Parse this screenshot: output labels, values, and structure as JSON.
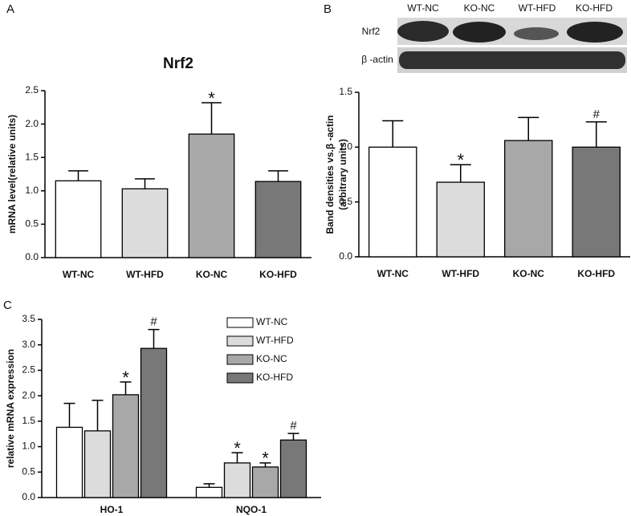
{
  "panel_labels": [
    "A",
    "B",
    "C"
  ],
  "blot": {
    "lanes": [
      "WT-NC",
      "KO-NC",
      "WT-HFD",
      "KO-HFD"
    ],
    "rows": [
      "Nrf2",
      "β -actin"
    ]
  },
  "chart_data": [
    {
      "type": "bar",
      "title": "Nrf2",
      "ylabel": "mRNA level(relative units)",
      "categories": [
        "WT-NC",
        "WT-HFD",
        "KO-NC",
        "KO-HFD"
      ],
      "values": [
        1.15,
        1.03,
        1.85,
        1.14
      ],
      "errors": [
        0.15,
        0.15,
        0.47,
        0.16
      ],
      "markers": [
        null,
        null,
        "*",
        null
      ],
      "colors": [
        "#ffffff",
        "#dcdcdc",
        "#a8a8a8",
        "#787878"
      ],
      "ylim": [
        0,
        2.5
      ],
      "yticks": [
        {
          "value": 0,
          "label": "0.0"
        },
        0.5,
        {
          "value": 1,
          "label": "1.0"
        },
        1.5,
        {
          "value": 2,
          "label": "2.0"
        },
        2.5
      ]
    },
    {
      "type": "bar",
      "ylabel": [
        "Band densities vs.β -actin",
        "(arbitrary units)"
      ],
      "categories": [
        "WT-NC",
        "WT-HFD",
        "KO-NC",
        "KO-HFD"
      ],
      "values": [
        1.0,
        0.68,
        1.06,
        1.0
      ],
      "errors": [
        0.24,
        0.16,
        0.21,
        0.23
      ],
      "markers": [
        null,
        "*",
        null,
        "#"
      ],
      "colors": [
        "#ffffff",
        "#dcdcdc",
        "#a8a8a8",
        "#787878"
      ],
      "ylim": [
        0,
        1.5
      ],
      "yticks": [
        {
          "value": 0,
          "label": "0.0"
        },
        0.5,
        {
          "value": 1,
          "label": "1.0"
        },
        1.5
      ]
    },
    {
      "type": "bar",
      "ylabel": "relative mRNA expression",
      "categories": [
        "HO-1",
        "NQO-1"
      ],
      "series": [
        {
          "name": "WT-NC",
          "color": "#ffffff",
          "values": [
            1.38,
            0.2
          ],
          "errors": [
            0.47,
            0.07
          ],
          "markers": [
            null,
            null
          ]
        },
        {
          "name": "WT-HFD",
          "color": "#dcdcdc",
          "values": [
            1.31,
            0.68
          ],
          "errors": [
            0.6,
            0.2
          ],
          "markers": [
            null,
            "*"
          ]
        },
        {
          "name": "KO-NC",
          "color": "#a8a8a8",
          "values": [
            2.02,
            0.6
          ],
          "errors": [
            0.25,
            0.08
          ],
          "markers": [
            "*",
            "*"
          ]
        },
        {
          "name": "KO-HFD",
          "color": "#787878",
          "values": [
            2.93,
            1.13
          ],
          "errors": [
            0.37,
            0.13
          ],
          "markers": [
            "#",
            "#"
          ]
        }
      ],
      "legend": "upper right",
      "ylim": [
        0,
        3.5
      ],
      "yticks": [
        {
          "value": 0,
          "label": "0.0"
        },
        0.5,
        {
          "value": 1,
          "label": "1.0"
        },
        1.5,
        {
          "value": 2,
          "label": "2.0"
        },
        2.5,
        {
          "value": 3,
          "label": "3.0"
        },
        3.5
      ]
    }
  ]
}
